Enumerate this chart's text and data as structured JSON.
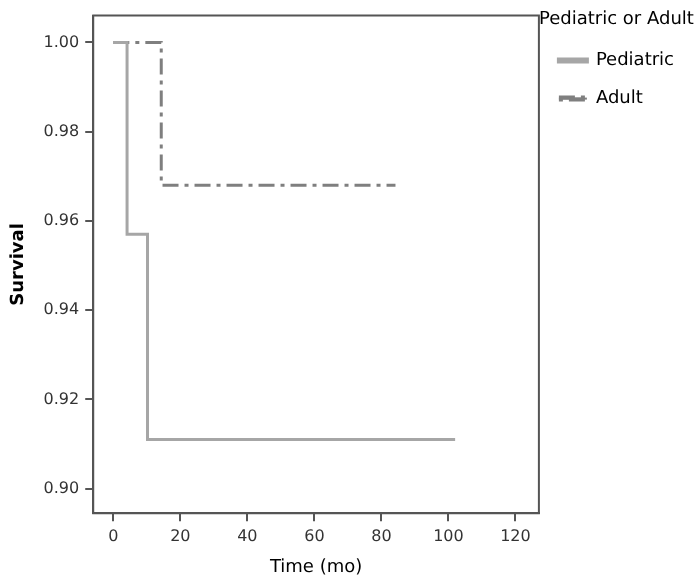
{
  "chart_data": {
    "type": "step",
    "xlabel": "Time (mo)",
    "ylabel": "Survival",
    "legend_title": "Pediatric or Adult",
    "legend": "top right",
    "grid": false,
    "xlim": [
      -6,
      127
    ],
    "xticks": [
      0,
      20,
      40,
      60,
      80,
      100,
      120
    ],
    "ylim": [
      0.8945,
      1.006
    ],
    "yticks": [
      {
        "value": 0.9,
        "label": "0.90"
      },
      {
        "value": 0.92,
        "label": "0.92"
      },
      {
        "value": 0.94,
        "label": "0.94"
      },
      {
        "value": 0.96,
        "label": "0.96"
      },
      {
        "value": 0.98,
        "label": "0.98"
      },
      {
        "value": 1,
        "label": "1.00"
      }
    ],
    "series": [
      {
        "name": "Pediatric",
        "color": "#a6a6a6",
        "line_style": "solid",
        "x": [
          0,
          4.1,
          10.2,
          102
        ],
        "values": [
          1,
          0.957,
          0.911,
          0.911
        ]
      },
      {
        "name": "Adult",
        "color": "#7f7f7f",
        "line_style": "dashed",
        "x": [
          0,
          14.3,
          84.2
        ],
        "values": [
          1,
          0.968,
          0.968
        ]
      }
    ]
  }
}
